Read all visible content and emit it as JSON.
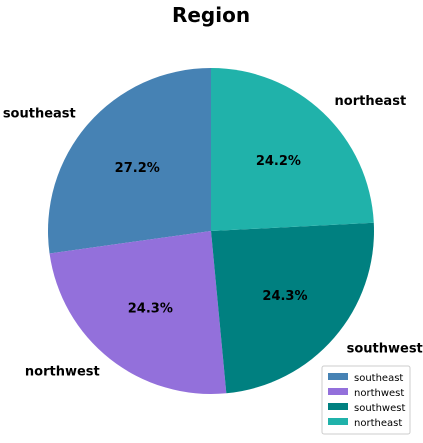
{
  "chart_data": {
    "type": "pie",
    "title": "Region",
    "start_angle_deg": 90,
    "direction": "counterclockwise",
    "legend_position": "lower-right",
    "slices": [
      {
        "label": "southeast",
        "value": 27.2,
        "pct_text": "27.2%",
        "color": "#4682B4"
      },
      {
        "label": "northwest",
        "value": 24.3,
        "pct_text": "24.3%",
        "color": "#9370DB"
      },
      {
        "label": "southwest",
        "value": 24.3,
        "pct_text": "24.3%",
        "color": "#008080"
      },
      {
        "label": "northeast",
        "value": 24.2,
        "pct_text": "24.2%",
        "color": "#20B2AA"
      }
    ]
  }
}
